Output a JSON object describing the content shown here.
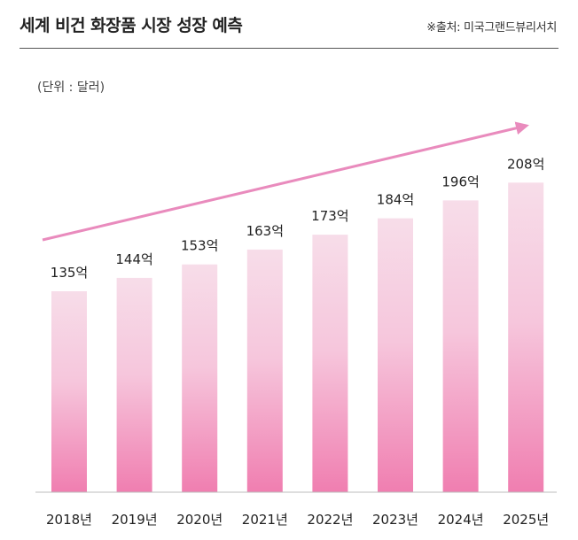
{
  "header": {
    "title": "세계 비건 화장품 시장 성장 예측",
    "source": "※출처: 미국그랜드뷰리서치"
  },
  "colors": {
    "bar_top": "#f7dde9",
    "bar_bottom": "#f07eb0",
    "arrow": "#e98bbd",
    "baseline": "#bdbdbd"
  },
  "chart_data": {
    "type": "bar",
    "unit_label": "(단위 : 달러)",
    "categories": [
      "2018년",
      "2019년",
      "2020년",
      "2021년",
      "2022년",
      "2023년",
      "2024년",
      "2025년"
    ],
    "values": [
      135,
      144,
      153,
      163,
      173,
      184,
      196,
      208
    ],
    "value_labels": [
      "135억",
      "144억",
      "153억",
      "163억",
      "173억",
      "184억",
      "196억",
      "208억"
    ],
    "value_unit": "억 달러",
    "ylim": [
      0,
      240
    ],
    "grid": false,
    "legend": "none",
    "trend_arrow": true
  }
}
